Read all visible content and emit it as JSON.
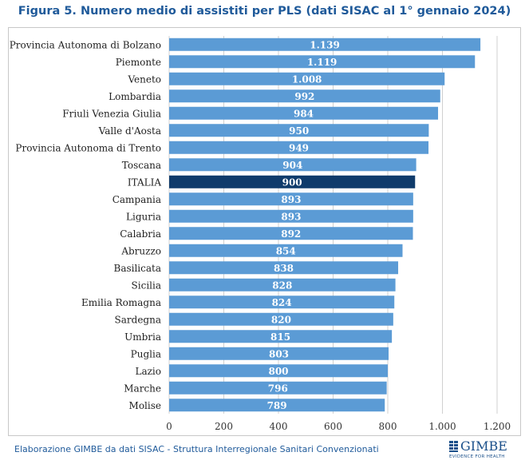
{
  "colors": {
    "bar": "#5b9bd5",
    "highlight": "#0f3b6b",
    "label": "#ffffff",
    "grid": "#d0d0d0",
    "accent": "#1f5a9a"
  },
  "title": "Figura 5. Numero medio di assistiti per PLS (dati SISAC al 1° gennaio 2024)",
  "source": "Elaborazione GIMBE da dati SISAC - Struttura Interregionale Sanitari Convenzionati",
  "logo": {
    "name": "GIMBE",
    "tagline": "EVIDENCE FOR HEALTH",
    "icon": "gimbe-logo-icon"
  },
  "chart_data": {
    "type": "bar",
    "orientation": "horizontal",
    "categories": [
      "Provincia Autonoma di Bolzano",
      "Piemonte",
      "Veneto",
      "Lombardia",
      "Friuli Venezia Giulia",
      "Valle d'Aosta",
      "Provincia Autonoma di Trento",
      "Toscana",
      "ITALIA",
      "Campania",
      "Liguria",
      "Calabria",
      "Abruzzo",
      "Basilicata",
      "Sicilia",
      "Emilia Romagna",
      "Sardegna",
      "Umbria",
      "Puglia",
      "Lazio",
      "Marche",
      "Molise"
    ],
    "values": [
      1139,
      1119,
      1008,
      992,
      984,
      950,
      949,
      904,
      900,
      893,
      893,
      892,
      854,
      838,
      828,
      824,
      820,
      815,
      803,
      800,
      796,
      789
    ],
    "value_labels": [
      "1.139",
      "1.119",
      "1.008",
      "992",
      "984",
      "950",
      "949",
      "904",
      "900",
      "893",
      "893",
      "892",
      "854",
      "838",
      "828",
      "824",
      "820",
      "815",
      "803",
      "800",
      "796",
      "789"
    ],
    "highlight": "ITALIA",
    "xlim": [
      0,
      1200
    ],
    "xticks": [
      0,
      200,
      400,
      600,
      800,
      1000,
      1200
    ],
    "xtick_labels": [
      "0",
      "200",
      "400",
      "600",
      "800",
      "1.000",
      "1.200"
    ],
    "grid": "vertical",
    "title": "Figura 5. Numero medio di assistiti per PLS (dati SISAC al 1° gennaio 2024)",
    "xlabel": "",
    "ylabel": ""
  }
}
